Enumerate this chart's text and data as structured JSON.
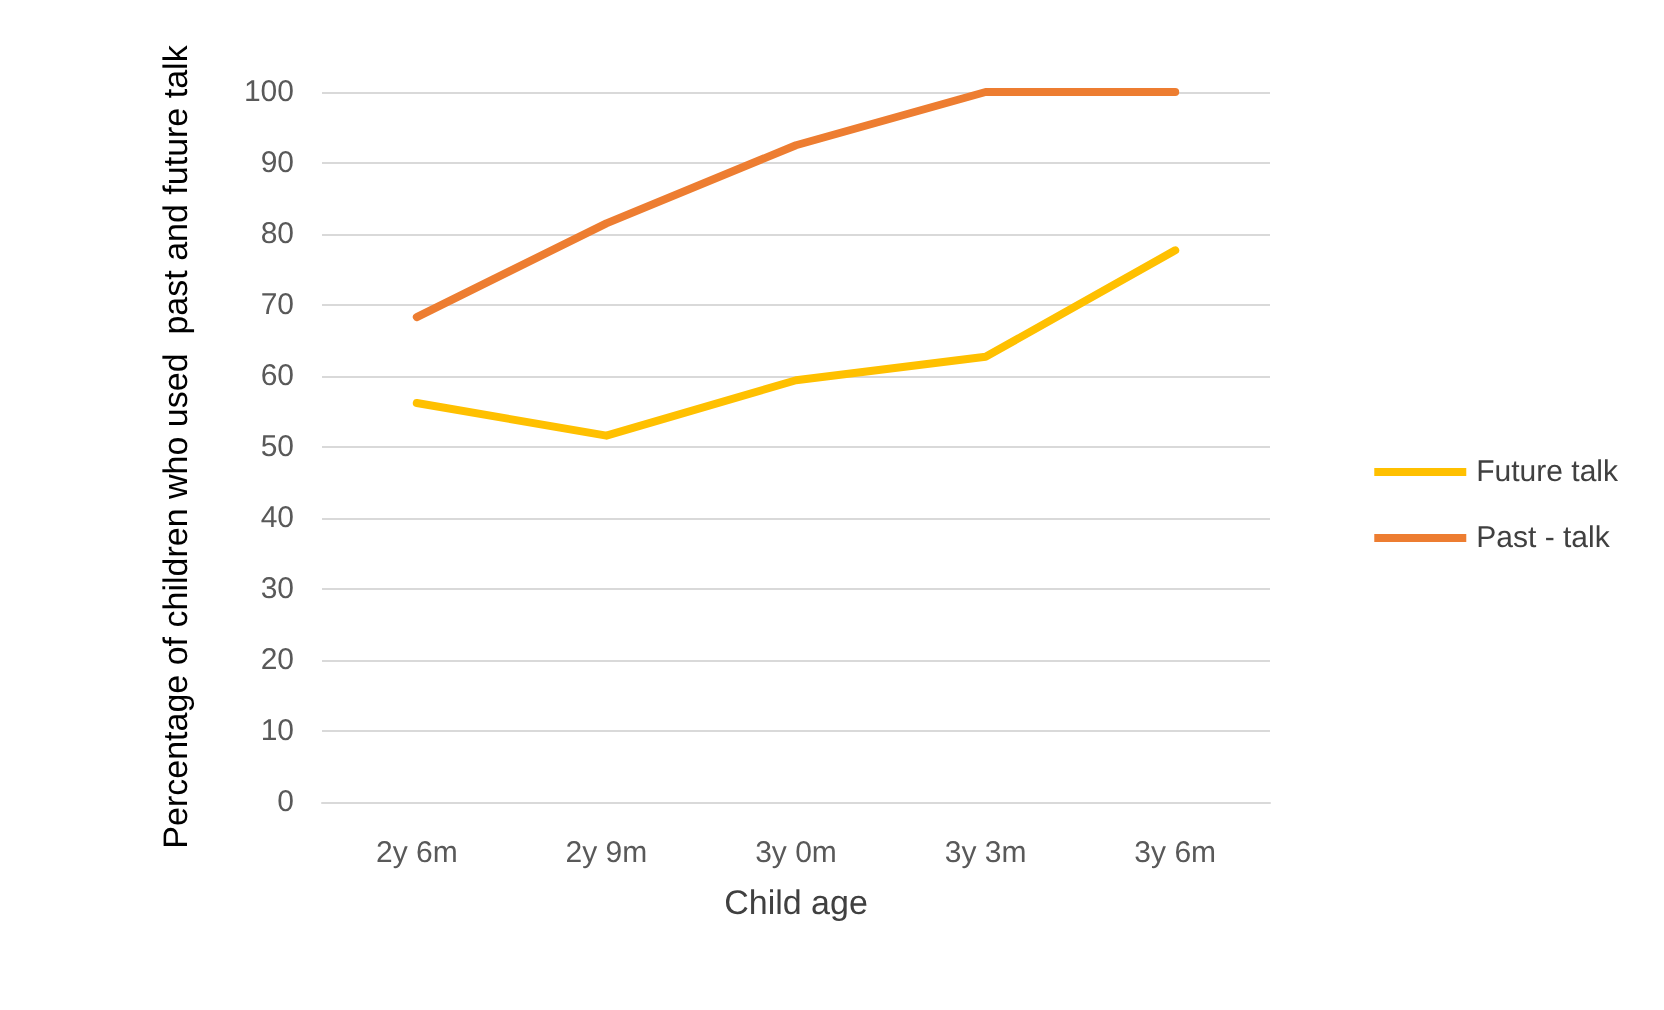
{
  "chart_data": {
    "type": "line",
    "xlabel": "Child age",
    "ylabel": "Percentage of children who used  past and future talk",
    "categories": [
      "2y 6m",
      "2y 9m",
      "3y 0m",
      "3y 3m",
      "3y 6m"
    ],
    "series": [
      {
        "name": "Future talk",
        "color": "#ffc000",
        "values": [
          56.2,
          51.6,
          59.4,
          62.7,
          77.7
        ]
      },
      {
        "name": "Past - talk",
        "color": "#ed7d31",
        "values": [
          68.3,
          81.5,
          92.5,
          100,
          100
        ]
      }
    ],
    "ylim": [
      0,
      100
    ],
    "yticks": [
      0,
      10,
      20,
      30,
      40,
      50,
      60,
      70,
      80,
      90,
      100
    ],
    "grid": "y",
    "legend": "right",
    "marker": "none"
  }
}
